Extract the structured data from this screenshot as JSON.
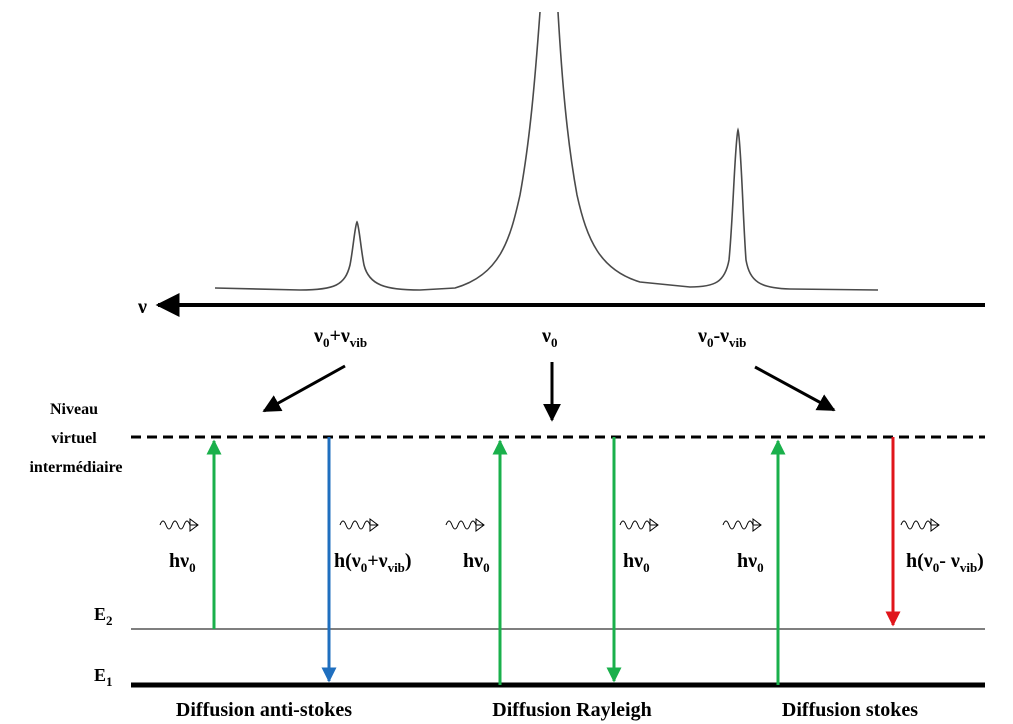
{
  "axis": {
    "symbol": "ν",
    "peaks": {
      "anti_stokes": {
        "main": "ν",
        "sub0": "0",
        "plus": "+ν",
        "sub_vib": "vib"
      },
      "rayleigh": {
        "main": "ν",
        "sub0": "0"
      },
      "stokes": {
        "main": "ν",
        "sub0": "0",
        "minus": "-ν",
        "sub_vib": "vib"
      }
    }
  },
  "levels": {
    "virtual": [
      "Niveau",
      "virtuel",
      "intermédiaire"
    ],
    "e2": {
      "main": "E",
      "sub": "2"
    },
    "e1": {
      "main": "E",
      "sub": "1"
    }
  },
  "photons": {
    "incident": {
      "h": "hν",
      "sub": "0"
    },
    "anti_stokes_out": {
      "open": "h(ν",
      "sub0": "0",
      "plus": "+ν",
      "sub_vib": "vib",
      "close": ")"
    },
    "rayleigh_out": {
      "h": "hν",
      "sub": "0"
    },
    "stokes_out": {
      "open": "h(ν",
      "sub0": "0",
      "minus": "- ν",
      "sub_vib": "vib",
      "close": ")"
    }
  },
  "processes": {
    "anti_stokes": "Diffusion anti-stokes",
    "rayleigh": "Diffusion Rayleigh",
    "stokes": "Diffusion stokes"
  },
  "colors": {
    "excitation": "#1ab04b",
    "anti_stokes": "#1f6fbf",
    "rayleigh_emission": "#1ab04b",
    "stokes": "#e0151b",
    "axis": "#000000",
    "spectrum": "#4a4a4a"
  }
}
